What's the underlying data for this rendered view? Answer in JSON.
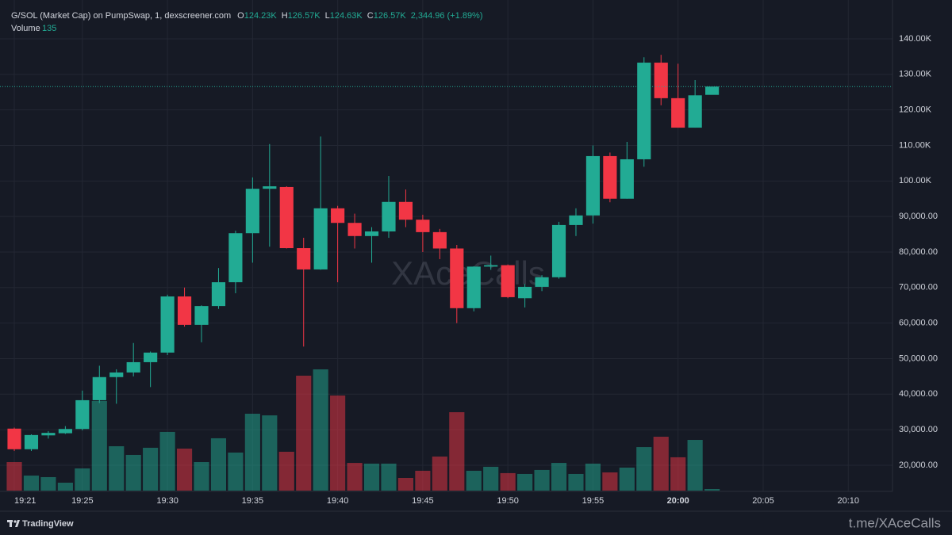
{
  "chart_data": {
    "type": "candlestick",
    "title": "G/SOL (Market Cap) on PumpSwap, 1, dexscreener.com",
    "ohlc_legend": [
      {
        "label": "O",
        "value": "124.23K"
      },
      {
        "label": "H",
        "value": "126.57K"
      },
      {
        "label": "L",
        "value": "124.63K"
      },
      {
        "label": "C",
        "value": "126.57K"
      }
    ],
    "change": "2,344.96 (+1.89%)",
    "volume_label": "Volume",
    "volume_legend": "135",
    "watermark": "XAceCalls",
    "footer_brand": "TradingView",
    "footer_link": "t.me/XAceCalls",
    "up_color": "#22ab94",
    "down_color": "#f23645",
    "grid": true,
    "x": [
      1161,
      1162,
      1163,
      1164,
      1165,
      1166,
      1167,
      1168,
      1169,
      1170,
      1171,
      1172,
      1173,
      1174,
      1175,
      1176,
      1177,
      1178,
      1179,
      1180,
      1181,
      1182,
      1183,
      1184,
      1185,
      1186,
      1187,
      1188,
      1189,
      1190,
      1191,
      1192,
      1193,
      1194,
      1195,
      1196,
      1197,
      1198,
      1199,
      1200,
      1201,
      1202
    ],
    "open": [
      30300,
      24500,
      28400,
      29000,
      30200,
      38300,
      44800,
      46100,
      49000,
      51700,
      67500,
      59500,
      64800,
      71500,
      85300,
      97800,
      98300,
      81100,
      75100,
      92300,
      88200,
      84500,
      85800,
      94100,
      89100,
      85600,
      81000,
      64200,
      75900,
      76300,
      67000,
      70200,
      72900,
      87600,
      90300,
      107000,
      95000,
      106100,
      133300,
      123300,
      115000,
      124230
    ],
    "high": [
      30600,
      28700,
      29600,
      31000,
      41000,
      48000,
      47000,
      54400,
      52000,
      68000,
      70000,
      65000,
      75500,
      86000,
      101000,
      110400,
      98500,
      84000,
      112500,
      93000,
      90800,
      87000,
      101400,
      97600,
      90500,
      86500,
      82000,
      76000,
      79000,
      76500,
      71000,
      73500,
      88500,
      92300,
      110000,
      108000,
      111000,
      134800,
      135500,
      133000,
      128400,
      126570
    ],
    "low": [
      24000,
      24000,
      27500,
      28800,
      29800,
      37500,
      37300,
      45000,
      42000,
      51000,
      59000,
      54600,
      64000,
      68400,
      77000,
      81500,
      81000,
      53400,
      75000,
      71500,
      81000,
      77000,
      84000,
      87000,
      80000,
      78000,
      60000,
      63300,
      75000,
      67000,
      64400,
      69000,
      72500,
      84500,
      88000,
      94000,
      95000,
      104000,
      121300,
      115000,
      115000,
      124630
    ],
    "close": [
      24500,
      28500,
      29100,
      30200,
      38300,
      44800,
      46100,
      49000,
      51700,
      67500,
      59500,
      64800,
      71500,
      85300,
      97800,
      98500,
      81100,
      75100,
      92300,
      88200,
      84500,
      85800,
      94100,
      89100,
      85600,
      81000,
      64200,
      75900,
      76300,
      67300,
      70200,
      72900,
      87600,
      90300,
      107000,
      95000,
      106100,
      133300,
      123300,
      115000,
      124100,
      126570
    ],
    "volume": [
      2430,
      1280,
      1150,
      675,
      1890,
      7630,
      3780,
      3040,
      3650,
      5000,
      3580,
      2430,
      4460,
      3240,
      6550,
      6410,
      3310,
      9790,
      10330,
      8100,
      2360,
      2300,
      2300,
      1080,
      1690,
      2900,
      6680,
      1690,
      2030,
      1490,
      1420,
      1760,
      2360,
      1420,
      2300,
      1550,
      1960,
      3710,
      4590,
      2840,
      4320,
      135
    ],
    "xlim": [
      1160.16,
      1212.6
    ],
    "xticks": [
      {
        "value": 1161,
        "label": "19:21"
      },
      {
        "value": 1165,
        "label": "19:25"
      },
      {
        "value": 1170,
        "label": "19:30"
      },
      {
        "value": 1175,
        "label": "19:35"
      },
      {
        "value": 1180,
        "label": "19:40"
      },
      {
        "value": 1185,
        "label": "19:45"
      },
      {
        "value": 1190,
        "label": "19:50"
      },
      {
        "value": 1195,
        "label": "19:55"
      },
      {
        "value": 1200,
        "label": "20:00"
      },
      {
        "value": 1205,
        "label": "20:05"
      },
      {
        "value": 1210,
        "label": "20:10"
      }
    ],
    "ylim": [
      12630,
      150930
    ],
    "yticks": [
      {
        "value": 140000,
        "label": "140.00K"
      },
      {
        "value": 130000,
        "label": "130.00K"
      },
      {
        "value": 120000,
        "label": "120.00K"
      },
      {
        "value": 110000,
        "label": "110.00K"
      },
      {
        "value": 100000,
        "label": "100.00K"
      },
      {
        "value": 90000,
        "label": "90,000.00"
      },
      {
        "value": 80000,
        "label": "80,000.00"
      },
      {
        "value": 70000,
        "label": "70,000.00"
      },
      {
        "value": 60000,
        "label": "60,000.00"
      },
      {
        "value": 50000,
        "label": "50,000.00"
      },
      {
        "value": 40000,
        "label": "40,000.00"
      },
      {
        "value": 30000,
        "label": "30,000.00"
      },
      {
        "value": 20000,
        "label": "20,000.00"
      }
    ]
  }
}
